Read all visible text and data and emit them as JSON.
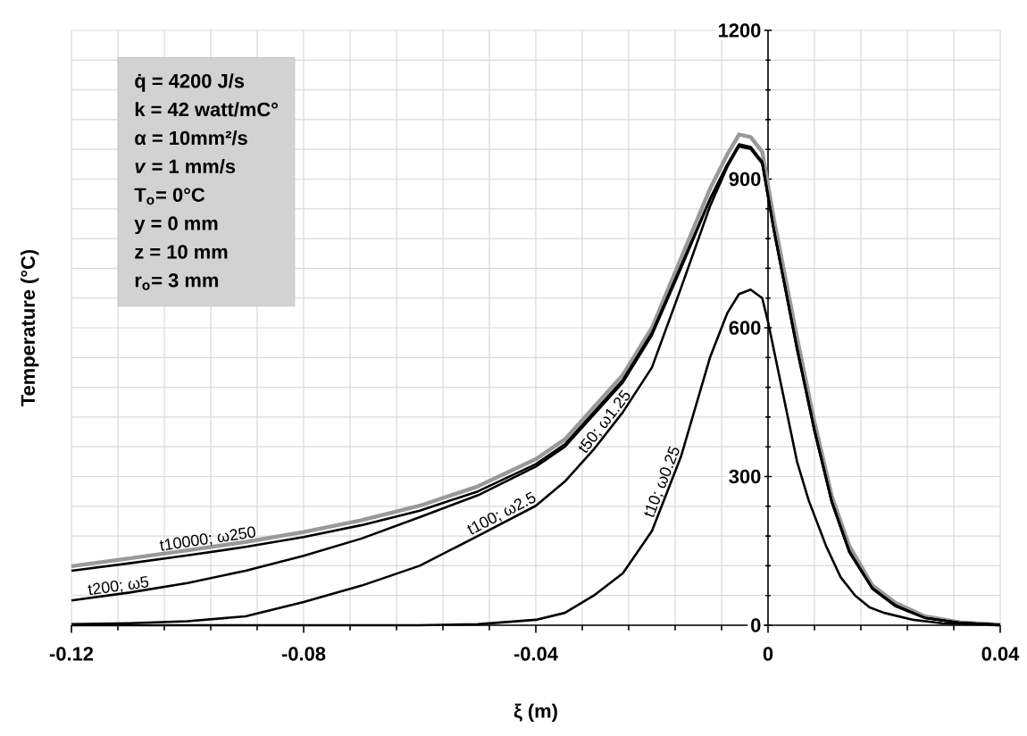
{
  "chart_data": {
    "type": "line",
    "xlabel": "ξ (m)",
    "ylabel": "Temperature (°C)",
    "xlim": [
      -0.12,
      0.04
    ],
    "ylim": [
      0,
      1200
    ],
    "xticks": [
      -0.12,
      -0.08,
      -0.04,
      0,
      0.04
    ],
    "yticks": [
      0,
      300,
      600,
      900,
      1200
    ],
    "grid": true,
    "marker": "none",
    "line_style": "solid",
    "series": [
      {
        "color": "#999999",
        "x": [
          -0.12,
          -0.11,
          -0.1,
          -0.09,
          -0.08,
          -0.07,
          -0.06,
          -0.05,
          -0.04,
          -0.035,
          -0.03,
          -0.025,
          -0.02,
          -0.015,
          -0.01,
          -0.007,
          -0.005,
          -0.003,
          -0.001,
          0.001,
          0.003,
          0.005,
          0.008,
          0.011,
          0.014,
          0.018,
          0.022,
          0.027,
          0.033,
          0.04
        ],
        "values": [
          119,
          135,
          151,
          168,
          188,
          212,
          241,
          280,
          335,
          375,
          440,
          505,
          600,
          740,
          880,
          950,
          990,
          985,
          955,
          820,
          700,
          580,
          410,
          260,
          160,
          80,
          45,
          18,
          6,
          1
        ]
      },
      {
        "color": "#000000",
        "x": [
          -0.12,
          -0.11,
          -0.1,
          -0.09,
          -0.08,
          -0.07,
          -0.06,
          -0.05,
          -0.04,
          -0.035,
          -0.03,
          -0.025,
          -0.02,
          -0.015,
          -0.01,
          -0.007,
          -0.005,
          -0.003,
          -0.001,
          0.001,
          0.003,
          0.005,
          0.008,
          0.011,
          0.014,
          0.018,
          0.022,
          0.027,
          0.033,
          0.04
        ],
        "values": [
          110,
          125,
          141,
          158,
          178,
          202,
          231,
          270,
          325,
          365,
          430,
          495,
          590,
          725,
          860,
          930,
          970,
          965,
          935,
          800,
          680,
          560,
          395,
          250,
          150,
          75,
          40,
          15,
          5,
          1
        ]
      },
      {
        "color": "#000000",
        "x": [
          -0.12,
          -0.11,
          -0.1,
          -0.09,
          -0.08,
          -0.07,
          -0.06,
          -0.05,
          -0.04,
          -0.035,
          -0.03,
          -0.025,
          -0.02,
          -0.015,
          -0.01,
          -0.007,
          -0.005,
          -0.003,
          -0.001,
          0.001,
          0.003,
          0.005,
          0.008,
          0.011,
          0.014,
          0.018,
          0.022,
          0.027,
          0.033,
          0.04
        ],
        "values": [
          50,
          66,
          85,
          110,
          140,
          175,
          218,
          262,
          320,
          360,
          425,
          490,
          585,
          720,
          858,
          928,
          968,
          963,
          933,
          798,
          678,
          558,
          393,
          248,
          148,
          74,
          39,
          15,
          5,
          1
        ]
      },
      {
        "color": "#000000",
        "x": [
          -0.12,
          -0.11,
          -0.1,
          -0.09,
          -0.08,
          -0.07,
          -0.06,
          -0.05,
          -0.04,
          -0.035,
          -0.03,
          -0.025,
          -0.02,
          -0.015,
          -0.01,
          -0.007,
          -0.005,
          -0.003,
          -0.001,
          0.001,
          0.003,
          0.005,
          0.008,
          0.011,
          0.014,
          0.018,
          0.022,
          0.027,
          0.033,
          0.04
        ],
        "values": [
          2,
          4,
          8,
          18,
          47,
          80,
          120,
          180,
          241,
          290,
          355,
          430,
          520,
          680,
          845,
          925,
          966,
          961,
          931,
          796,
          676,
          556,
          391,
          247,
          147,
          73,
          38,
          15,
          5,
          1
        ]
      },
      {
        "color": "#000000",
        "x": [
          -0.12,
          -0.06,
          -0.05,
          -0.04,
          -0.035,
          -0.03,
          -0.025,
          -0.02,
          -0.015,
          -0.01,
          -0.007,
          -0.005,
          -0.003,
          -0.001,
          0,
          0.003,
          0.005,
          0.007,
          0.01,
          0.0125,
          0.015,
          0.0175,
          0.02,
          0.025,
          0.03,
          0.04
        ],
        "values": [
          0,
          0,
          2,
          11,
          25,
          60,
          105,
          190,
          340,
          540,
          630,
          668,
          677,
          660,
          612,
          443,
          330,
          252,
          160,
          97,
          60,
          36,
          25,
          11,
          4,
          0
        ]
      }
    ],
    "annotations": [
      "q̇ = 4200 J/s",
      "k = 42 watt/mC°",
      "α = 10mm²/s",
      "*v* = 1 mm/s",
      "T$_{o}$= 0°C",
      "y = 0 mm",
      "z = 10 mm",
      "r$_{o}$= 3 mm",
      {
        "text": "t10000; ω250",
        "x": -0.0963,
        "y": 157
      },
      {
        "text": "t200; ω5",
        "x": -0.1117,
        "y": 62
      },
      {
        "text": "t100; ω2.5",
        "x": -0.0452,
        "y": 210
      },
      {
        "text": "t50; ω1.25",
        "x": -0.027,
        "y": 400
      },
      {
        "text": "t10; ω0.25",
        "x": -0.0169,
        "y": 283
      }
    ]
  }
}
